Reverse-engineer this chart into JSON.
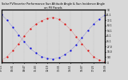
{
  "title": "Solar PV/Inverter Performance Sun Altitude Angle & Sun Incidence Angle on PV Panels",
  "xlabel_times": [
    "07:15",
    "08:31",
    "09:47",
    "11:03",
    "12:19",
    "13:35",
    "14:51",
    "16:07",
    "17:23",
    "18:39"
  ],
  "y_right_labels": [
    "90",
    "81.1",
    "72.1",
    "63.1",
    "54.1",
    "45.1",
    "36.1",
    "27.0",
    "18.0",
    "9.0",
    "0"
  ],
  "ylim": [
    0,
    90
  ],
  "xlim": [
    0,
    9
  ],
  "blue_x": [
    0,
    0.5,
    1.0,
    1.5,
    2.0,
    2.5,
    3.0,
    3.5,
    4.0,
    4.5,
    5.0,
    5.5,
    6.0,
    6.5,
    7.0,
    7.5,
    8.0,
    8.5,
    9.0
  ],
  "blue_y": [
    82,
    72,
    60,
    47,
    35,
    24,
    16,
    10,
    7,
    6,
    8,
    13,
    20,
    30,
    42,
    54,
    65,
    74,
    81
  ],
  "red_x": [
    0,
    0.5,
    1.0,
    1.5,
    2.0,
    2.5,
    3.0,
    3.5,
    4.0,
    4.5,
    5.0,
    5.5,
    6.0,
    6.5,
    7.0,
    7.5,
    8.0,
    8.5,
    9.0
  ],
  "red_y": [
    3,
    10,
    20,
    32,
    45,
    57,
    65,
    71,
    75,
    77,
    73,
    66,
    56,
    44,
    32,
    20,
    10,
    4,
    1
  ],
  "blue_color": "#0000dd",
  "red_color": "#dd0000",
  "bg_color": "#d8d8d8",
  "grid_color": "#aaaaaa",
  "title_fontsize": 2.5,
  "tick_fontsize": 2.2,
  "marker_size": 1.2,
  "line_width": 0.3
}
